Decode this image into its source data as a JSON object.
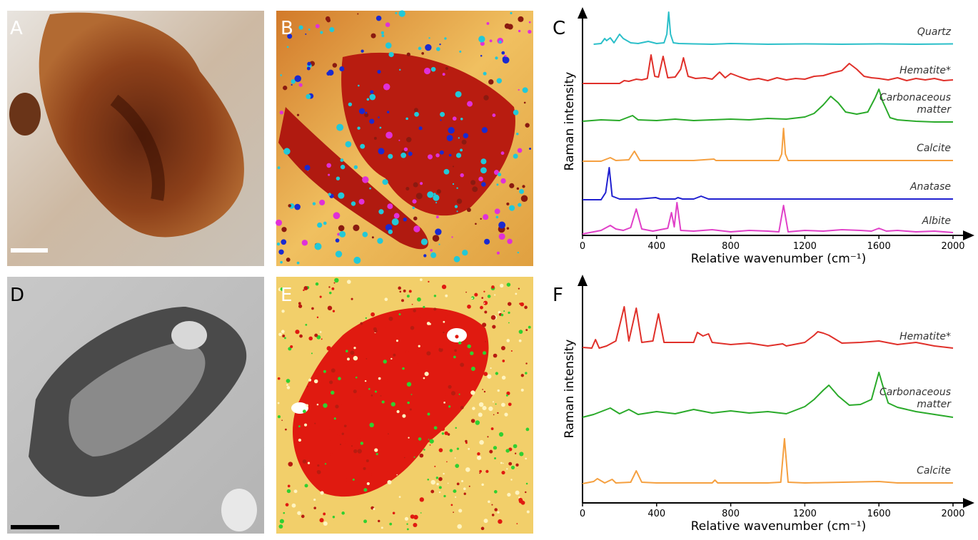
{
  "panels": [
    {
      "label": "A"
    },
    {
      "label": "B"
    },
    {
      "label": "D"
    },
    {
      "label": "E"
    }
  ],
  "chart_data": [
    {
      "type": "line",
      "panel_label": "C",
      "ylabel": "Raman intensity",
      "xlabel": "Relative wavenumber (cm⁻¹)",
      "xlim": [
        0,
        2000
      ],
      "xticks": [
        0,
        400,
        800,
        1200,
        1600,
        2000
      ],
      "series": [
        {
          "name": "Quartz",
          "color": "#2bbfc9",
          "x": [
            60,
            100,
            120,
            130,
            150,
            170,
            200,
            220,
            260,
            300,
            355,
            400,
            440,
            455,
            465,
            475,
            490,
            520,
            600,
            700,
            800,
            1000,
            1200,
            1400,
            1600,
            1800,
            2000
          ],
          "values": [
            2,
            4,
            18,
            12,
            20,
            6,
            30,
            18,
            6,
            4,
            10,
            4,
            6,
            30,
            92,
            30,
            6,
            4,
            3,
            2,
            4,
            2,
            3,
            2,
            3,
            2,
            3
          ]
        },
        {
          "name": "Hematite*",
          "color": "#e0302a",
          "x": [
            0,
            200,
            225,
            250,
            290,
            320,
            350,
            370,
            390,
            410,
            435,
            460,
            500,
            530,
            545,
            570,
            610,
            660,
            700,
            740,
            770,
            800,
            850,
            900,
            950,
            1000,
            1050,
            1100,
            1150,
            1200,
            1250,
            1300,
            1350,
            1400,
            1440,
            1480,
            1520,
            1560,
            1600,
            1650,
            1700,
            1750,
            1800,
            1850,
            1900,
            1950,
            2000
          ],
          "values": [
            0,
            0,
            8,
            6,
            12,
            10,
            14,
            80,
            20,
            18,
            76,
            16,
            18,
            40,
            72,
            20,
            14,
            16,
            12,
            32,
            16,
            28,
            18,
            10,
            14,
            8,
            16,
            10,
            14,
            12,
            20,
            22,
            30,
            36,
            56,
            40,
            20,
            16,
            14,
            10,
            16,
            8,
            14,
            10,
            14,
            8,
            10
          ]
        },
        {
          "name": "Carbonaceous matter",
          "color": "#2aaa2a",
          "x": [
            0,
            100,
            200,
            270,
            300,
            400,
            500,
            600,
            700,
            800,
            900,
            1000,
            1100,
            1200,
            1250,
            1300,
            1340,
            1380,
            1420,
            1480,
            1540,
            1580,
            1600,
            1620,
            1660,
            1700,
            1800,
            1900,
            2000
          ],
          "values": [
            4,
            8,
            6,
            20,
            8,
            6,
            10,
            6,
            8,
            10,
            8,
            12,
            10,
            16,
            26,
            50,
            74,
            56,
            30,
            24,
            30,
            70,
            94,
            60,
            14,
            8,
            4,
            2,
            2
          ]
        },
        {
          "name": "Calcite",
          "color": "#f5a040",
          "x": [
            0,
            100,
            150,
            180,
            250,
            280,
            310,
            400,
            600,
            710,
            720,
            800,
            1000,
            1060,
            1075,
            1085,
            1095,
            1110,
            1200,
            1400,
            1600,
            1800,
            2000
          ],
          "values": [
            0,
            0,
            10,
            2,
            4,
            28,
            2,
            2,
            2,
            6,
            2,
            2,
            2,
            2,
            20,
            92,
            20,
            2,
            2,
            2,
            2,
            2,
            2
          ]
        },
        {
          "name": "Anatase",
          "color": "#2020d0",
          "x": [
            0,
            100,
            125,
            144,
            160,
            200,
            300,
            395,
            420,
            500,
            515,
            540,
            600,
            640,
            680,
            800,
            1000,
            1200,
            1400,
            1600,
            1800,
            2000
          ],
          "values": [
            0,
            0,
            20,
            90,
            10,
            2,
            2,
            6,
            2,
            2,
            6,
            2,
            2,
            10,
            2,
            2,
            2,
            2,
            2,
            2,
            2,
            2
          ]
        },
        {
          "name": "Albite",
          "color": "#e040c8",
          "x": [
            0,
            60,
            100,
            150,
            180,
            220,
            260,
            290,
            320,
            380,
            420,
            460,
            480,
            495,
            510,
            530,
            600,
            700,
            800,
            900,
            1000,
            1060,
            1085,
            1110,
            1200,
            1300,
            1400,
            1500,
            1560,
            1600,
            1640,
            1700,
            1800,
            1900,
            2000
          ],
          "values": [
            0,
            6,
            10,
            24,
            14,
            10,
            18,
            70,
            14,
            8,
            12,
            16,
            60,
            20,
            88,
            10,
            8,
            12,
            6,
            10,
            8,
            6,
            80,
            6,
            10,
            8,
            12,
            10,
            8,
            16,
            8,
            10,
            6,
            8,
            4
          ]
        }
      ]
    },
    {
      "type": "line",
      "panel_label": "F",
      "ylabel": "Raman intensity",
      "xlabel": "Relative wavenumber (cm⁻¹)",
      "xlim": [
        0,
        2000
      ],
      "xticks": [
        0,
        400,
        800,
        1200,
        1600,
        2000
      ],
      "series": [
        {
          "name": "Hematite*",
          "color": "#e0302a",
          "x": [
            0,
            50,
            70,
            90,
            130,
            180,
            225,
            250,
            290,
            320,
            380,
            410,
            440,
            500,
            600,
            620,
            650,
            680,
            700,
            800,
            900,
            1000,
            1080,
            1100,
            1200,
            1250,
            1270,
            1300,
            1330,
            1400,
            1500,
            1600,
            1700,
            1800,
            1900,
            2000
          ],
          "values": [
            6,
            4,
            28,
            4,
            10,
            24,
            120,
            24,
            116,
            20,
            24,
            100,
            20,
            20,
            20,
            48,
            38,
            44,
            20,
            14,
            18,
            10,
            16,
            10,
            20,
            40,
            50,
            46,
            40,
            18,
            20,
            24,
            14,
            20,
            10,
            4
          ]
        },
        {
          "name": "Carbonaceous matter",
          "color": "#2aaa2a",
          "x": [
            0,
            60,
            100,
            150,
            200,
            250,
            300,
            400,
            500,
            600,
            700,
            800,
            900,
            1000,
            1100,
            1200,
            1250,
            1300,
            1330,
            1380,
            1440,
            1500,
            1560,
            1600,
            1620,
            1650,
            1700,
            1800,
            1900,
            2000
          ],
          "values": [
            0,
            8,
            16,
            26,
            10,
            22,
            8,
            16,
            10,
            22,
            12,
            18,
            12,
            16,
            10,
            30,
            50,
            76,
            90,
            60,
            34,
            36,
            50,
            126,
            90,
            40,
            28,
            16,
            8,
            0
          ]
        },
        {
          "name": "Calcite",
          "color": "#f5a040",
          "x": [
            0,
            60,
            80,
            120,
            160,
            180,
            260,
            290,
            320,
            400,
            700,
            715,
            730,
            800,
            1000,
            1070,
            1090,
            1110,
            1200,
            1600,
            1700,
            2000
          ],
          "values": [
            0,
            6,
            14,
            2,
            12,
            2,
            4,
            36,
            4,
            2,
            2,
            10,
            2,
            2,
            2,
            4,
            126,
            4,
            2,
            6,
            2,
            2
          ]
        }
      ]
    }
  ]
}
